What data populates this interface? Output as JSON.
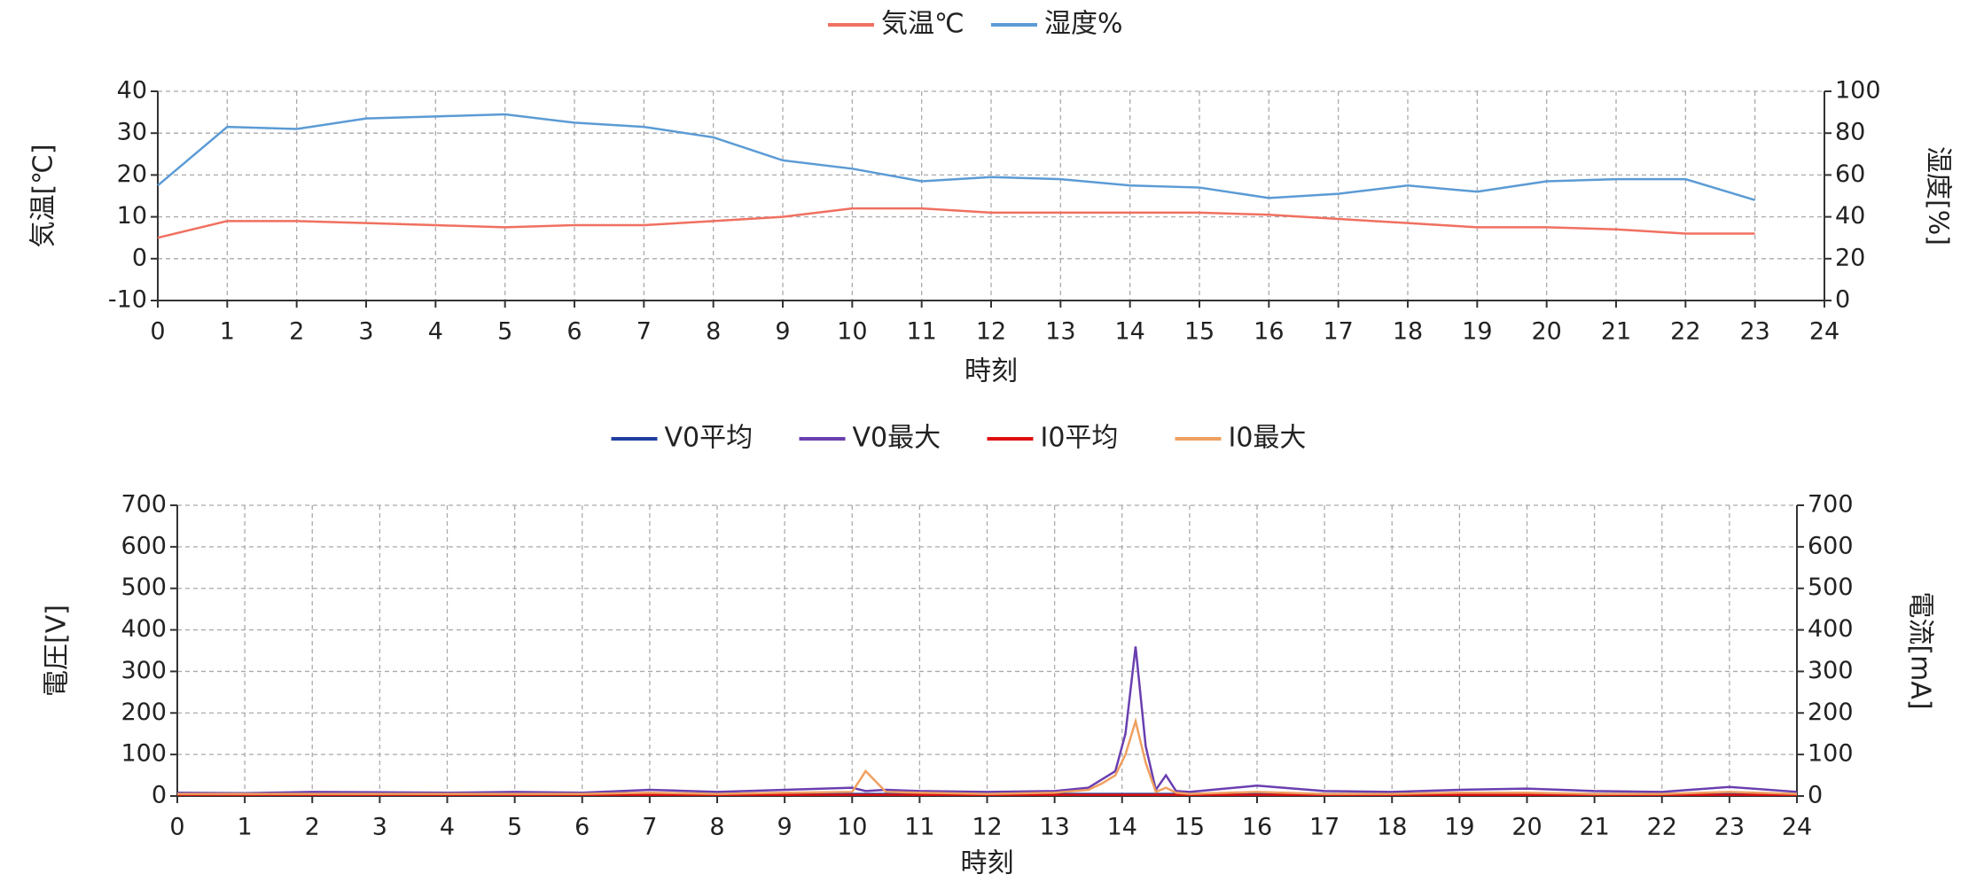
{
  "chart_data": [
    {
      "type": "line",
      "x_label": "時刻",
      "y_label": "気温[℃]",
      "y2_label": "湿度[%]",
      "x": [
        0,
        1,
        2,
        3,
        4,
        5,
        6,
        7,
        8,
        9,
        10,
        11,
        12,
        13,
        14,
        15,
        16,
        17,
        18,
        19,
        20,
        21,
        22,
        23
      ],
      "xlim": [
        0,
        24
      ],
      "xticks": [
        0,
        1,
        2,
        3,
        4,
        5,
        6,
        7,
        8,
        9,
        10,
        11,
        12,
        13,
        14,
        15,
        16,
        17,
        18,
        19,
        20,
        21,
        22,
        23,
        24
      ],
      "ylim": [
        -10,
        40
      ],
      "yticks": [
        -10,
        0,
        10,
        20,
        30,
        40
      ],
      "y2lim": [
        0,
        100
      ],
      "y2ticks": [
        0,
        20,
        40,
        60,
        80,
        100
      ],
      "grid": true,
      "legend": "top",
      "series": [
        {
          "name": "気温℃",
          "color": "#f07060",
          "values": [
            5,
            9,
            9,
            8.5,
            8,
            7.5,
            8,
            8,
            9,
            10,
            12,
            12,
            11,
            11,
            11,
            11,
            10.5,
            9.5,
            8.5,
            7.5,
            7.5,
            7,
            6,
            6
          ]
        },
        {
          "name": "湿度%",
          "color": "#5b9bd5",
          "axis": "y2",
          "values": [
            55,
            83,
            82,
            87,
            88,
            89,
            85,
            83,
            78,
            67,
            63,
            57,
            59,
            58,
            55,
            54,
            49,
            51,
            55,
            52,
            57,
            58,
            58,
            48
          ]
        }
      ]
    },
    {
      "type": "line",
      "x_label": "時刻",
      "y_label": "電圧[V]",
      "y2_label": "電流[mA]",
      "x": [
        0,
        1,
        2,
        3,
        4,
        5,
        6,
        7,
        8,
        9,
        10,
        10.2,
        10.5,
        11,
        12,
        13,
        13.5,
        13.7,
        13.9,
        14.05,
        14.2,
        14.35,
        14.5,
        14.65,
        14.8,
        15,
        16,
        17,
        18,
        19,
        20,
        21,
        22,
        23,
        24
      ],
      "xlim": [
        0,
        24
      ],
      "xticks": [
        0,
        1,
        2,
        3,
        4,
        5,
        6,
        7,
        8,
        9,
        10,
        11,
        12,
        13,
        14,
        15,
        16,
        17,
        18,
        19,
        20,
        21,
        22,
        23,
        24
      ],
      "ylim": [
        0,
        700
      ],
      "yticks": [
        0,
        100,
        200,
        300,
        400,
        500,
        600,
        700
      ],
      "y2lim": [
        0,
        700
      ],
      "y2ticks": [
        0,
        100,
        200,
        300,
        400,
        500,
        600,
        700
      ],
      "grid": true,
      "legend": "top",
      "series": [
        {
          "name": "V0平均",
          "color": "#1f3f9f",
          "values": [
            5,
            5,
            5,
            5,
            5,
            5,
            5,
            5,
            5,
            5,
            5,
            5,
            5,
            5,
            5,
            5,
            5,
            5,
            5,
            5,
            5,
            5,
            5,
            5,
            5,
            5,
            5,
            5,
            5,
            5,
            5,
            5,
            5,
            5,
            5
          ]
        },
        {
          "name": "V0最大",
          "color": "#6a3fb0",
          "values": [
            8,
            7,
            10,
            9,
            8,
            10,
            8,
            15,
            10,
            15,
            20,
            12,
            15,
            12,
            10,
            12,
            20,
            40,
            60,
            150,
            360,
            120,
            15,
            50,
            12,
            10,
            25,
            12,
            10,
            15,
            18,
            12,
            10,
            22,
            10
          ]
        },
        {
          "name": "I0平均",
          "color": "#e01010",
          "axis": "y2",
          "values": [
            3,
            3,
            3,
            3,
            3,
            3,
            3,
            3,
            3,
            3,
            3,
            3,
            3,
            3,
            3,
            3,
            3,
            3,
            3,
            3,
            3,
            3,
            3,
            3,
            3,
            3,
            3,
            3,
            3,
            3,
            3,
            3,
            3,
            3,
            3
          ]
        },
        {
          "name": "I0最大",
          "color": "#f0a060",
          "axis": "y2",
          "values": [
            5,
            5,
            5,
            5,
            5,
            5,
            5,
            8,
            5,
            8,
            10,
            60,
            10,
            8,
            5,
            8,
            15,
            30,
            50,
            100,
            180,
            80,
            10,
            20,
            8,
            5,
            10,
            5,
            5,
            8,
            8,
            5,
            5,
            10,
            5
          ]
        }
      ]
    }
  ]
}
